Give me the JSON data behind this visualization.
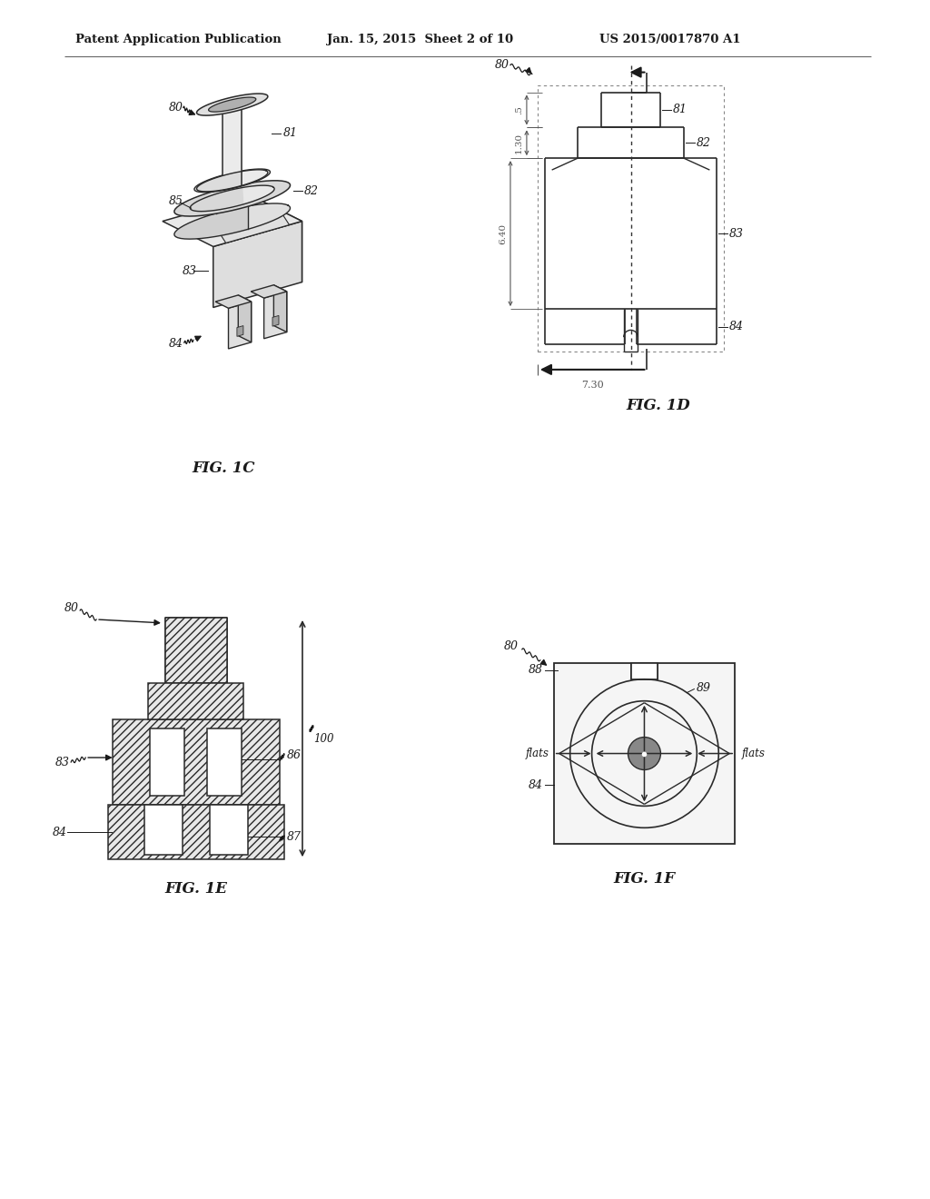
{
  "bg_color": "#ffffff",
  "header_left": "Patent Application Publication",
  "header_mid": "Jan. 15, 2015  Sheet 2 of 10",
  "header_right": "US 2015/0017870 A1",
  "fig1c_label": "FIG. 1C",
  "fig1d_label": "FIG. 1D",
  "fig1e_label": "FIG. 1E",
  "fig1f_label": "FIG. 1F",
  "text_color": "#1a1a1a",
  "line_color": "#2a2a2a",
  "dim_color": "#555555"
}
